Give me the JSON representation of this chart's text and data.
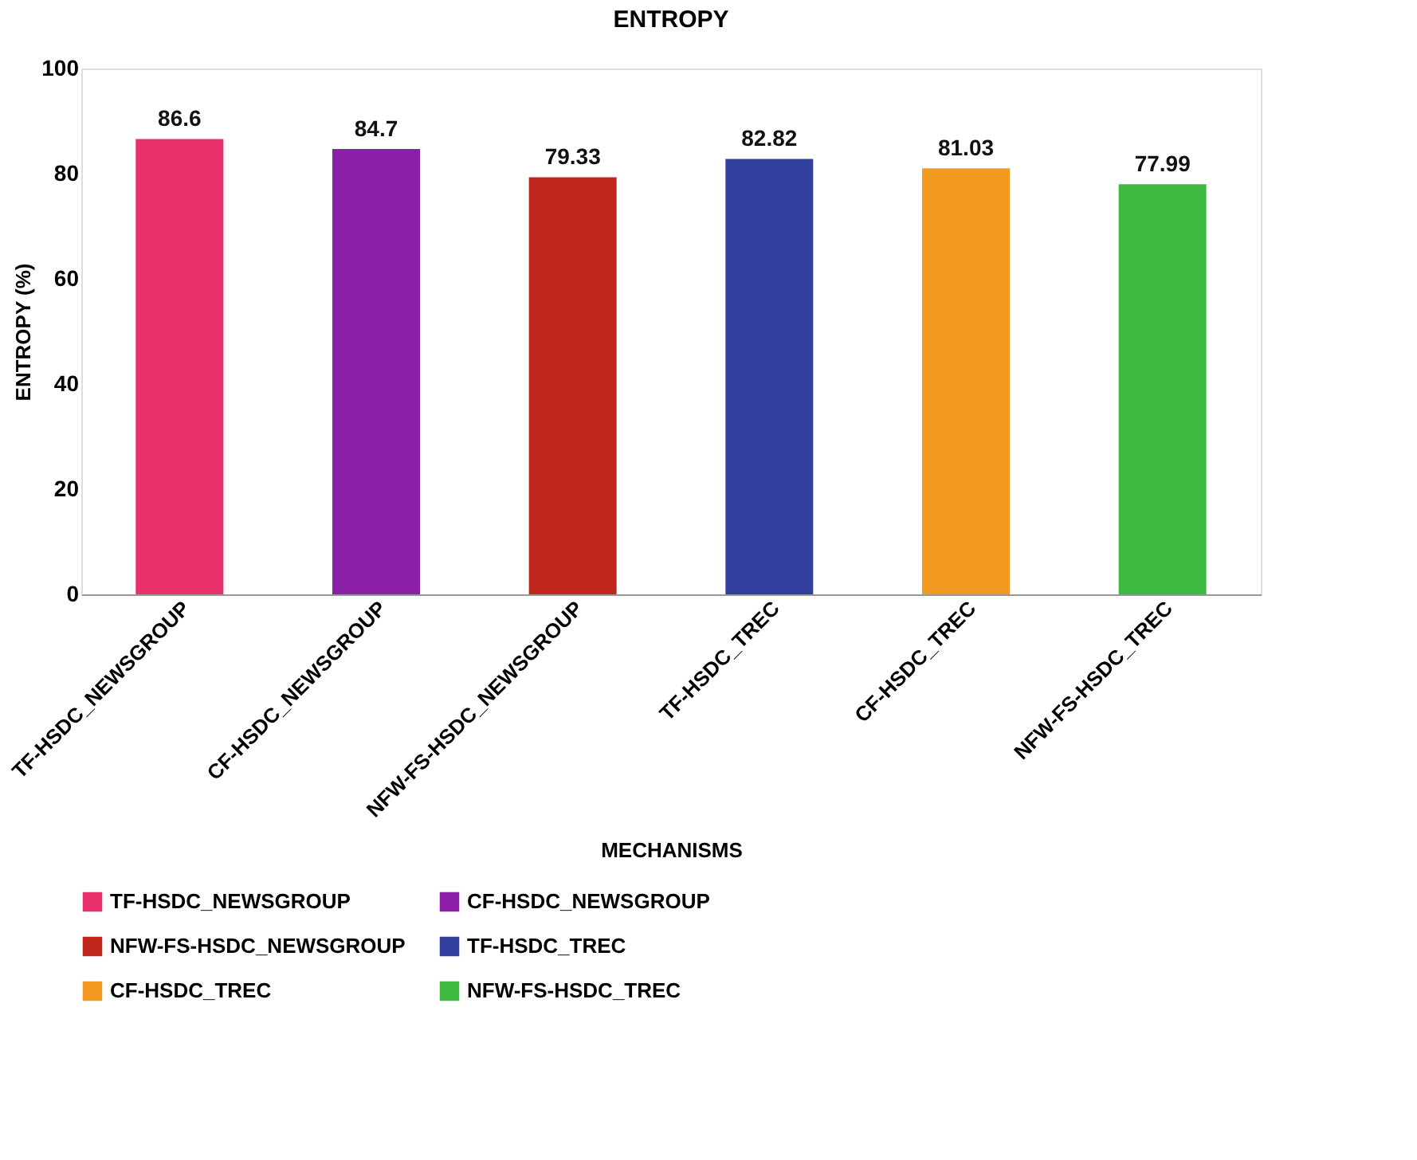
{
  "chart_data": {
    "type": "bar",
    "title": "ENTROPY",
    "xlabel": "MECHANISMS",
    "ylabel": "ENTROPY (%)",
    "categories": [
      "TF-HSDC_NEWSGROUP",
      "CF-HSDC_NEWSGROUP",
      "NFW-FS-HSDC_NEWSGROUP",
      "TF-HSDC_TREC",
      "CF-HSDC_TREC",
      "NFW-FS-HSDC_TREC"
    ],
    "series": [
      {
        "name": "TF-HSDC_NEWSGROUP",
        "color": "#e8306a",
        "values": [
          86.6,
          null,
          null,
          null,
          null,
          null
        ]
      },
      {
        "name": "CF-HSDC_NEWSGROUP",
        "color": "#8b1fa8",
        "values": [
          null,
          84.7,
          null,
          null,
          null,
          null
        ]
      },
      {
        "name": "NFW-FS-HSDC_NEWSGROUP",
        "color": "#c0261c",
        "values": [
          null,
          null,
          79.33,
          null,
          null,
          null
        ]
      },
      {
        "name": "TF-HSDC_TREC",
        "color": "#333f9e",
        "values": [
          null,
          null,
          null,
          82.82,
          null,
          null
        ]
      },
      {
        "name": "CF-HSDC_TREC",
        "color": "#f39a22",
        "values": [
          null,
          null,
          null,
          null,
          81.03,
          null
        ]
      },
      {
        "name": "NFW-FS-HSDC_TREC",
        "color": "#3cba3f",
        "values": [
          null,
          null,
          null,
          null,
          null,
          77.99
        ]
      }
    ],
    "ylim": [
      0,
      100
    ],
    "yticks": [
      0,
      20,
      40,
      60,
      80,
      100
    ],
    "grid": false,
    "legend": "bottom",
    "data_labels": true
  }
}
